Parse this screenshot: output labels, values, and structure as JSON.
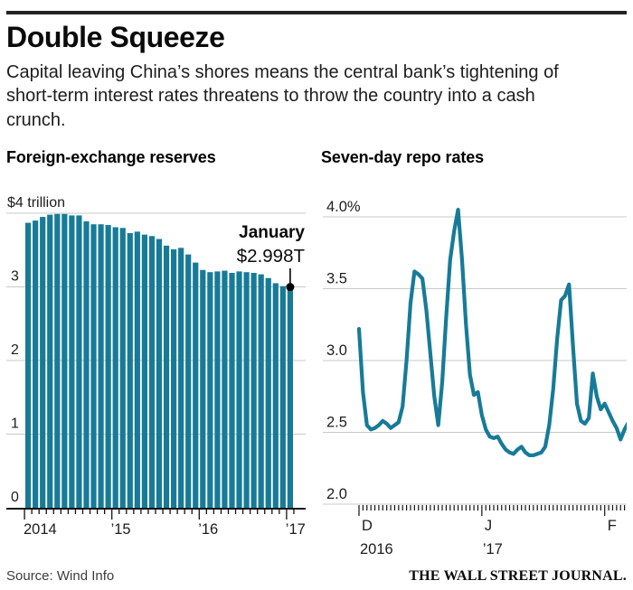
{
  "colors": {
    "teal": "#177b98",
    "grid": "#c9c9c9",
    "axis": "#111111",
    "rule": "#232323",
    "annotation_dot": "#000000"
  },
  "header": {
    "title": "Double Squeeze",
    "subtitle": "Capital leaving China’s shores means the central bank’s tightening of short-term interest rates threatens to throw the country into a cash crunch."
  },
  "chart_data": [
    {
      "type": "bar",
      "title": "Foreign-exchange reserves",
      "ylabel": "$ trillion",
      "ylim": [
        0,
        4
      ],
      "grid": true,
      "y_ticks": [
        {
          "value": 4,
          "label": "$4 trillion"
        },
        {
          "value": 3,
          "label": "3"
        },
        {
          "value": 2,
          "label": "2"
        },
        {
          "value": 1,
          "label": "1"
        },
        {
          "value": 0,
          "label": "0"
        }
      ],
      "x_ticks": [
        {
          "label": "2014",
          "month_index": 0
        },
        {
          "label": "’15",
          "month_index": 12
        },
        {
          "label": "’16",
          "month_index": 24
        },
        {
          "label": "’17",
          "month_index": 36
        }
      ],
      "annotation": {
        "label": "January",
        "value_label": "$2.998T",
        "month_index": 36,
        "value": 2.998
      },
      "categories": [
        "Jan 2014",
        "Feb 2014",
        "Mar 2014",
        "Apr 2014",
        "May 2014",
        "Jun 2014",
        "Jul 2014",
        "Aug 2014",
        "Sep 2014",
        "Oct 2014",
        "Nov 2014",
        "Dec 2014",
        "Jan 2015",
        "Feb 2015",
        "Mar 2015",
        "Apr 2015",
        "May 2015",
        "Jun 2015",
        "Jul 2015",
        "Aug 2015",
        "Sep 2015",
        "Oct 2015",
        "Nov 2015",
        "Dec 2015",
        "Jan 2016",
        "Feb 2016",
        "Mar 2016",
        "Apr 2016",
        "May 2016",
        "Jun 2016",
        "Jul 2016",
        "Aug 2016",
        "Sep 2016",
        "Oct 2016",
        "Nov 2016",
        "Dec 2016",
        "Jan 2017"
      ],
      "values": [
        3.87,
        3.9,
        3.95,
        3.98,
        3.99,
        3.99,
        3.97,
        3.97,
        3.89,
        3.85,
        3.85,
        3.84,
        3.81,
        3.8,
        3.73,
        3.75,
        3.71,
        3.69,
        3.65,
        3.56,
        3.51,
        3.53,
        3.44,
        3.33,
        3.23,
        3.2,
        3.21,
        3.22,
        3.19,
        3.21,
        3.2,
        3.19,
        3.17,
        3.12,
        3.05,
        3.01,
        2.998
      ]
    },
    {
      "type": "line",
      "title": "Seven-day repo rates",
      "ylabel": "%",
      "ylim": [
        2.0,
        4.0
      ],
      "grid": true,
      "frequency": "daily",
      "x_range": "Dec 1, 2016 – early Feb 2017",
      "y_ticks": [
        {
          "value": 4.0,
          "label": "4.0%"
        },
        {
          "value": 3.5,
          "label": "3.5"
        },
        {
          "value": 3.0,
          "label": "3.0"
        },
        {
          "value": 2.5,
          "label": "2.5"
        },
        {
          "value": 2.0,
          "label": "2.0"
        }
      ],
      "x_ticks": [
        {
          "label": "D",
          "sub": "2016",
          "day_index": 0
        },
        {
          "label": "J",
          "sub": "’17",
          "day_index": 31
        },
        {
          "label": "F",
          "sub": "",
          "day_index": 62
        }
      ],
      "values": [
        3.22,
        2.78,
        2.55,
        2.52,
        2.53,
        2.55,
        2.58,
        2.56,
        2.53,
        2.55,
        2.57,
        2.68,
        3.0,
        3.4,
        3.62,
        3.6,
        3.57,
        3.35,
        3.05,
        2.75,
        2.55,
        2.85,
        3.3,
        3.7,
        3.9,
        4.05,
        3.7,
        3.25,
        2.9,
        2.76,
        2.78,
        2.62,
        2.52,
        2.47,
        2.46,
        2.47,
        2.42,
        2.38,
        2.36,
        2.35,
        2.38,
        2.4,
        2.36,
        2.34,
        2.34,
        2.35,
        2.36,
        2.4,
        2.55,
        2.8,
        3.15,
        3.42,
        3.45,
        3.53,
        3.1,
        2.7,
        2.58,
        2.56,
        2.6,
        2.91,
        2.75,
        2.66,
        2.7,
        2.64,
        2.58,
        2.53,
        2.45,
        2.52,
        2.57
      ]
    }
  ],
  "footer": {
    "source": "Source: Wind Info",
    "credit": "THE WALL STREET JOURNAL."
  }
}
